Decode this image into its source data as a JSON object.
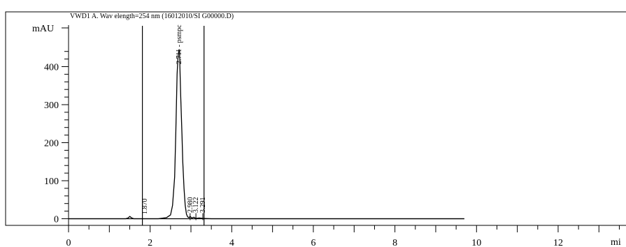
{
  "chart_data": {
    "type": "line",
    "title": "VWD1 A. Wav elength=254 nm (16012010/SI G00000.D)",
    "ylabel": "mAU",
    "xlabel": "mi",
    "xlim": [
      0,
      13.5
    ],
    "ylim": [
      0,
      470
    ],
    "x_ticks": [
      "0",
      "2",
      "4",
      "6",
      "8",
      "10",
      "12"
    ],
    "y_ticks": [
      "0",
      "100",
      "200",
      "300",
      "400"
    ],
    "x_tick_values": [
      0,
      2,
      4,
      6,
      8,
      10,
      12
    ],
    "y_tick_values": [
      0,
      100,
      200,
      300,
      400
    ],
    "grid": false,
    "legend": "none",
    "signal_end": 9.7,
    "series": [
      {
        "x": [
          0,
          1.4,
          1.46,
          1.5,
          1.55,
          1.6,
          1.7,
          2.2,
          2.4,
          2.5,
          2.55,
          2.6,
          2.63,
          2.65,
          2.66,
          2.68,
          2.7,
          2.71,
          2.72,
          2.73,
          2.75,
          2.78,
          2.8,
          2.83,
          2.86,
          2.89,
          2.92,
          2.95,
          2.98,
          3.02,
          3.07,
          3.12,
          3.2,
          3.3,
          3.5,
          4.0,
          9.7
        ],
        "y": [
          0,
          0,
          2,
          6,
          2,
          0,
          0,
          0,
          3,
          10,
          35,
          110,
          230,
          330,
          380,
          420,
          440,
          445,
          440,
          400,
          320,
          220,
          150,
          80,
          35,
          12,
          5,
          3,
          6,
          2,
          4,
          1,
          2,
          1,
          0,
          0,
          0
        ]
      }
    ],
    "peaks": [
      {
        "time": 1.87,
        "label": "1.870"
      },
      {
        "time": 2.711,
        "label": "2.711 - psmpc"
      },
      {
        "time": 2.98,
        "label": "2.980"
      },
      {
        "time": 3.122,
        "label": "3.122"
      },
      {
        "time": 3.291,
        "label": "3.291"
      }
    ]
  }
}
